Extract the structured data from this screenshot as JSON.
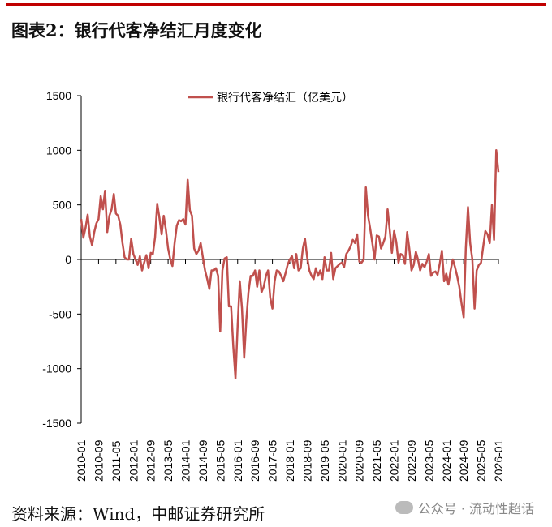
{
  "header": {
    "title": "图表2：银行代客净结汇月度变化"
  },
  "footer": {
    "source": "资料来源：Wind，中邮证券研究所",
    "watermark": "公众号 · 流动性超话"
  },
  "chart_data": {
    "type": "line",
    "title": "",
    "xlabel": "",
    "ylabel": "",
    "ylim": [
      -1500,
      1500
    ],
    "yticks": [
      1500,
      1000,
      500,
      0,
      -500,
      -1000,
      -1500
    ],
    "x_start": "2010-01",
    "x_end": "2026-01",
    "frequency": "monthly",
    "xtick_labels": [
      "2010-01",
      "2010-09",
      "2011-05",
      "2012-01",
      "2012-09",
      "2013-05",
      "2014-01",
      "2014-09",
      "2015-05",
      "2016-01",
      "2016-09",
      "2017-05",
      "2018-01",
      "2018-09",
      "2019-05",
      "2020-01",
      "2020-09",
      "2021-05",
      "2022-01",
      "2022-09",
      "2023-05",
      "2024-01",
      "2024-09",
      "2025-05",
      "2026-01"
    ],
    "legend_position": "top",
    "grid": false,
    "series": [
      {
        "name": "银行代客净结汇（亿美元）",
        "color": "#c0504d",
        "values": [
          370,
          200,
          290,
          410,
          210,
          130,
          250,
          330,
          370,
          580,
          460,
          630,
          250,
          400,
          460,
          600,
          420,
          400,
          320,
          150,
          20,
          0,
          0,
          190,
          50,
          0,
          -50,
          30,
          -100,
          -30,
          40,
          -80,
          60,
          50,
          200,
          510,
          380,
          230,
          400,
          270,
          100,
          0,
          -60,
          150,
          310,
          360,
          350,
          370,
          320,
          730,
          450,
          400,
          100,
          50,
          80,
          150,
          20,
          -100,
          -180,
          -270,
          -100,
          -100,
          -80,
          -150,
          -660,
          -100,
          10,
          20,
          -430,
          -430,
          -800,
          -1090,
          -600,
          -200,
          -450,
          -900,
          -550,
          -300,
          -150,
          -150,
          -100,
          -250,
          -100,
          -300,
          -250,
          -150,
          -100,
          -350,
          -450,
          -200,
          -100,
          -110,
          -150,
          -200,
          -130,
          -50,
          0,
          30,
          -80,
          50,
          -100,
          -80,
          100,
          190,
          20,
          -100,
          -150,
          -180,
          -80,
          -150,
          -100,
          -180,
          20,
          -100,
          -100,
          60,
          -180,
          -80,
          -60,
          -40,
          -30,
          -70,
          50,
          80,
          120,
          180,
          150,
          230,
          -20,
          -30,
          0,
          660,
          400,
          280,
          150,
          0,
          220,
          210,
          100,
          150,
          210,
          460,
          270,
          60,
          260,
          160,
          -30,
          50,
          40,
          -40,
          250,
          100,
          -100,
          -50,
          70,
          0,
          -100,
          -40,
          -70,
          -20,
          50,
          -150,
          -120,
          -110,
          -140,
          -40,
          80,
          -200,
          -130,
          -230,
          -100,
          0,
          -70,
          -150,
          -250,
          -400,
          -530,
          100,
          480,
          150,
          0,
          -450,
          -100,
          -50,
          -30,
          120,
          260,
          230,
          150,
          500,
          180,
          1000,
          800
        ]
      }
    ]
  }
}
